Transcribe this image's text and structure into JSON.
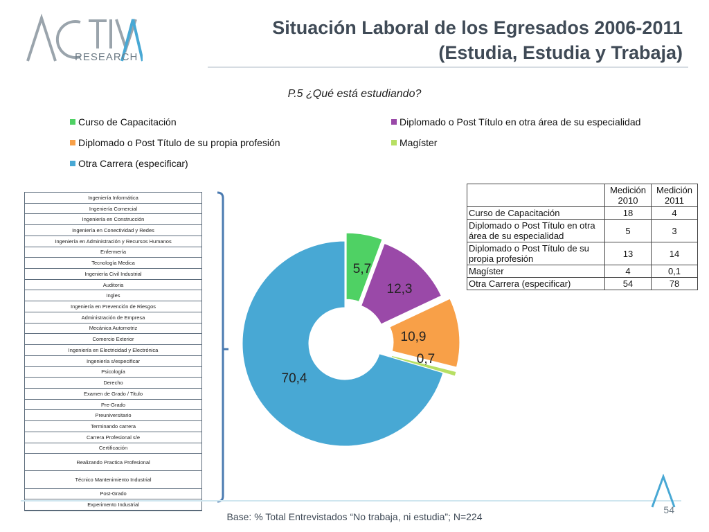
{
  "header": {
    "logo_text": "ACTIVA",
    "logo_sub": "RESEARCH",
    "title_line1": "Situación Laboral de los Egresados 2006-2011",
    "title_line2": "(Estudia, Estudia y Trabaja)"
  },
  "question": "P.5 ¿Qué está estudiando?",
  "colors": {
    "green": "#4fd164",
    "purple": "#9a49a8",
    "orange": "#f8a048",
    "lightgreen": "#b7df63",
    "blue": "#48a8d4",
    "title": "#3f4a56"
  },
  "legend": [
    {
      "label": "Curso de Capacitación",
      "color": "#4fd164"
    },
    {
      "label": "Diplomado o Post Título en otra área de su especialidad",
      "color": "#9a49a8"
    },
    {
      "label": "Diplomado o Post Título de su propia profesión",
      "color": "#f8a048"
    },
    {
      "label": "Magíster",
      "color": "#b7df63"
    },
    {
      "label": "Otra Carrera (especificar)",
      "color": "#48a8d4"
    }
  ],
  "other_careers": [
    "Ingeniería Informática",
    "Ingeniería Comercial",
    "Ingeniería en Construcción",
    "Ingeniería en Conectividad y Redes",
    "Ingeniería en Administración y Recursos Humanos",
    "Enfermería",
    "Tecnología Medica",
    "Ingeniería Civil Industrial",
    "Auditoria",
    "Ingles",
    "Ingeniería en Prevención de Riesgos",
    "Administración de Empresa",
    "Mecánica Automotriz",
    "Comercio Exterior",
    "Ingeniería en Electricidad y Electrónica",
    "Ingeniería s/especificar",
    "Psicología",
    "Derecho",
    "Examen de Grado / Titulo",
    "Pre-Grado",
    "Preuniversitario",
    "Terminando carrera",
    "Carrera Profesional s/e",
    "Certificación",
    "Realizando Practica Profesional",
    "Técnico Mantenimiento Industrial",
    "Post-Grado",
    "Experimento Industrial"
  ],
  "chart_data": {
    "type": "pie",
    "variant": "donut",
    "categories": [
      "Curso de Capacitación",
      "Diplomado o Post Título en otra área de su especialidad",
      "Diplomado o Post Título de su propia profesión",
      "Magíster",
      "Otra Carrera (especificar)"
    ],
    "values": [
      5.7,
      12.3,
      10.9,
      0.7,
      70.4
    ],
    "value_labels": [
      "5,7",
      "12,3",
      "10,9",
      "0,7",
      "70,4"
    ],
    "colors": [
      "#4fd164",
      "#9a49a8",
      "#f8a048",
      "#b7df63",
      "#48a8d4"
    ],
    "legend_position": "top"
  },
  "table": {
    "headers": [
      "",
      "Medición 2010",
      "Medición 2011"
    ],
    "rows": [
      {
        "label": "Curso de Capacitación",
        "v2010": "18",
        "v2011": "4"
      },
      {
        "label": "Diplomado o Post Título en otra área de su especialidad",
        "v2010": "5",
        "v2011": "3"
      },
      {
        "label": "Diplomado o Post Título de su propia profesión",
        "v2010": "13",
        "v2011": "14"
      },
      {
        "label": "Magíster",
        "v2010": "4",
        "v2011": "0,1"
      },
      {
        "label": "Otra Carrera (especificar)",
        "v2010": "54",
        "v2011": "78"
      }
    ]
  },
  "footer": {
    "base": "Base: % Total Entrevistados “No trabaja, ni estudia”; N=224",
    "page_number": "54"
  }
}
